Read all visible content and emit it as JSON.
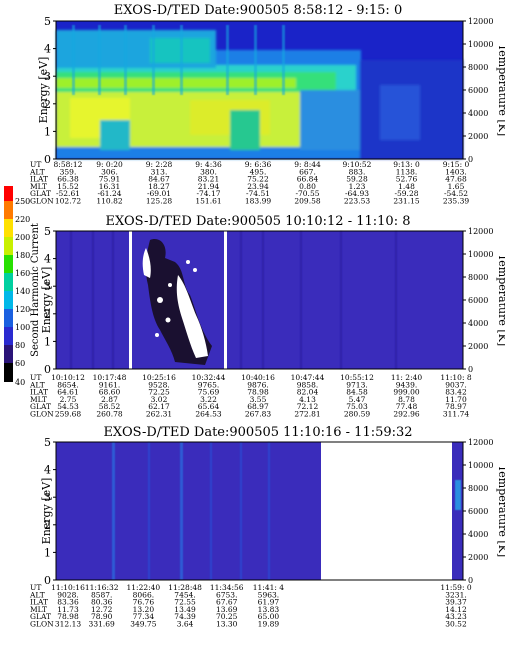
{
  "chart_data": [
    {
      "type": "heatmap",
      "title": "EXOS-D/TED   Date:900505   8:58:12 - 9:15: 0",
      "ylabel": "Energy [eV]",
      "y2label": "Temperature [K]",
      "ylim": [
        0,
        5
      ],
      "y2lim": [
        0,
        12000
      ],
      "yticks": [
        0,
        1,
        2,
        3,
        4,
        5
      ],
      "y2ticks": [
        0,
        2000,
        4000,
        6000,
        8000,
        10000,
        12000
      ],
      "rows": {
        "UT": [
          "8:58:12",
          "9: 0:20",
          "9: 2:28",
          "9: 4:36",
          "9: 6:36",
          "9: 8:44",
          "9:10:52",
          "9:13: 0",
          "9:15: 0"
        ],
        "ALT": [
          "359.",
          "306.",
          "313.",
          "380.",
          "495.",
          "667.",
          "883.",
          "1138.",
          "1403."
        ],
        "ILAT": [
          "66.38",
          "75.91",
          "84.67",
          "83.21",
          "75.22",
          "66.84",
          "59.28",
          "52.76",
          "47.68"
        ],
        "MLT": [
          "15.52",
          "16.31",
          "18.27",
          "21.94",
          "23.94",
          "0.80",
          "1.23",
          "1.48",
          "1.65"
        ],
        "GLAT": [
          "-52.61",
          "-61.24",
          "-69.01",
          "-74.17",
          "-74.51",
          "-70.55",
          "-64.93",
          "-59.28",
          "-54.52"
        ],
        "GLON": [
          "102.72",
          "110.82",
          "125.28",
          "151.61",
          "183.99",
          "209.58",
          "223.53",
          "231.15",
          "235.39"
        ]
      },
      "row_labels": [
        "UT",
        "ALT",
        "ILAT",
        "MLT",
        "GLAT",
        "GLON"
      ]
    },
    {
      "type": "heatmap",
      "title": "EXOS-D/TED   Date:900505   10:10:12 - 11:10: 8",
      "ylabel": "Energy [eV]",
      "y2label": "Temperature [K]",
      "ylim": [
        0,
        5
      ],
      "y2lim": [
        0,
        12000
      ],
      "yticks": [
        0,
        1,
        2,
        3,
        4,
        5
      ],
      "y2ticks": [
        0,
        2000,
        4000,
        6000,
        8000,
        10000,
        12000
      ],
      "colorbar": {
        "label": "Second Harmonic Current",
        "range": [
          40,
          250
        ],
        "ticks": [
          40,
          60,
          80,
          100,
          120,
          140,
          160,
          180,
          200,
          220,
          250
        ]
      },
      "rows": {
        "UT": [
          "10:10:12",
          "10:17:48",
          "10:25:16",
          "10:32:44",
          "10:40:16",
          "10:47:44",
          "10:55:12",
          "11: 2:40",
          "11:10: 8"
        ],
        "ALT": [
          "8654.",
          "9161.",
          "9528.",
          "9765.",
          "9876.",
          "9858.",
          "9713.",
          "9439.",
          "9037."
        ],
        "ILAT": [
          "64.61",
          "68.60",
          "72.25",
          "75.69",
          "78.98",
          "82.04",
          "84.58",
          "999.00",
          "83.42"
        ],
        "MLT": [
          "2.75",
          "2.87",
          "3.02",
          "3.22",
          "3.55",
          "4.13",
          "5.47",
          "8.78",
          "11.70"
        ],
        "GLAT": [
          "54.53",
          "58.52",
          "62.17",
          "65.64",
          "68.97",
          "72.12",
          "75.03",
          "77.48",
          "78.97"
        ],
        "GLON": [
          "259.68",
          "260.78",
          "262.31",
          "264.53",
          "267.83",
          "272.81",
          "280.59",
          "292.96",
          "311.74"
        ]
      },
      "row_labels": [
        "UT",
        "ALT",
        "ILAT",
        "MLT",
        "GLAT",
        "GLON"
      ]
    },
    {
      "type": "heatmap",
      "title": "EXOS-D/TED   Date:900505   11:10:16 - 11:59:32",
      "ylabel": "Energy [eV]",
      "y2label": "Temperature [K]",
      "ylim": [
        0,
        5
      ],
      "y2lim": [
        0,
        12000
      ],
      "yticks": [
        0,
        1,
        2,
        3,
        4,
        5
      ],
      "y2ticks": [
        0,
        2000,
        4000,
        6000,
        8000,
        10000,
        12000
      ],
      "rows": {
        "UT": [
          "11:10:16",
          "11:16:32",
          "11:22:40",
          "11:28:48",
          "11:34:56",
          "11:41: 4",
          "11:59: 0"
        ],
        "ALT": [
          "9028.",
          "8587.",
          "8066.",
          "7454.",
          "6753.",
          "5963.",
          "3231."
        ],
        "ILAT": [
          "83.36",
          "80.36",
          "76.76",
          "72.55",
          "67.67",
          "61.97",
          "39.37"
        ],
        "MLT": [
          "11.73",
          "12.72",
          "13.20",
          "13.49",
          "13.69",
          "13.83",
          "14.12"
        ],
        "GLAT": [
          "78.98",
          "78.90",
          "77.34",
          "74.39",
          "70.25",
          "65.00",
          "43.23"
        ],
        "GLON": [
          "312.13",
          "331.69",
          "349.75",
          "3.64",
          "13.30",
          "19.89",
          "30.52"
        ]
      },
      "row_labels": [
        "UT",
        "ALT",
        "ILAT",
        "MLT",
        "GLAT",
        "GLON"
      ]
    }
  ]
}
